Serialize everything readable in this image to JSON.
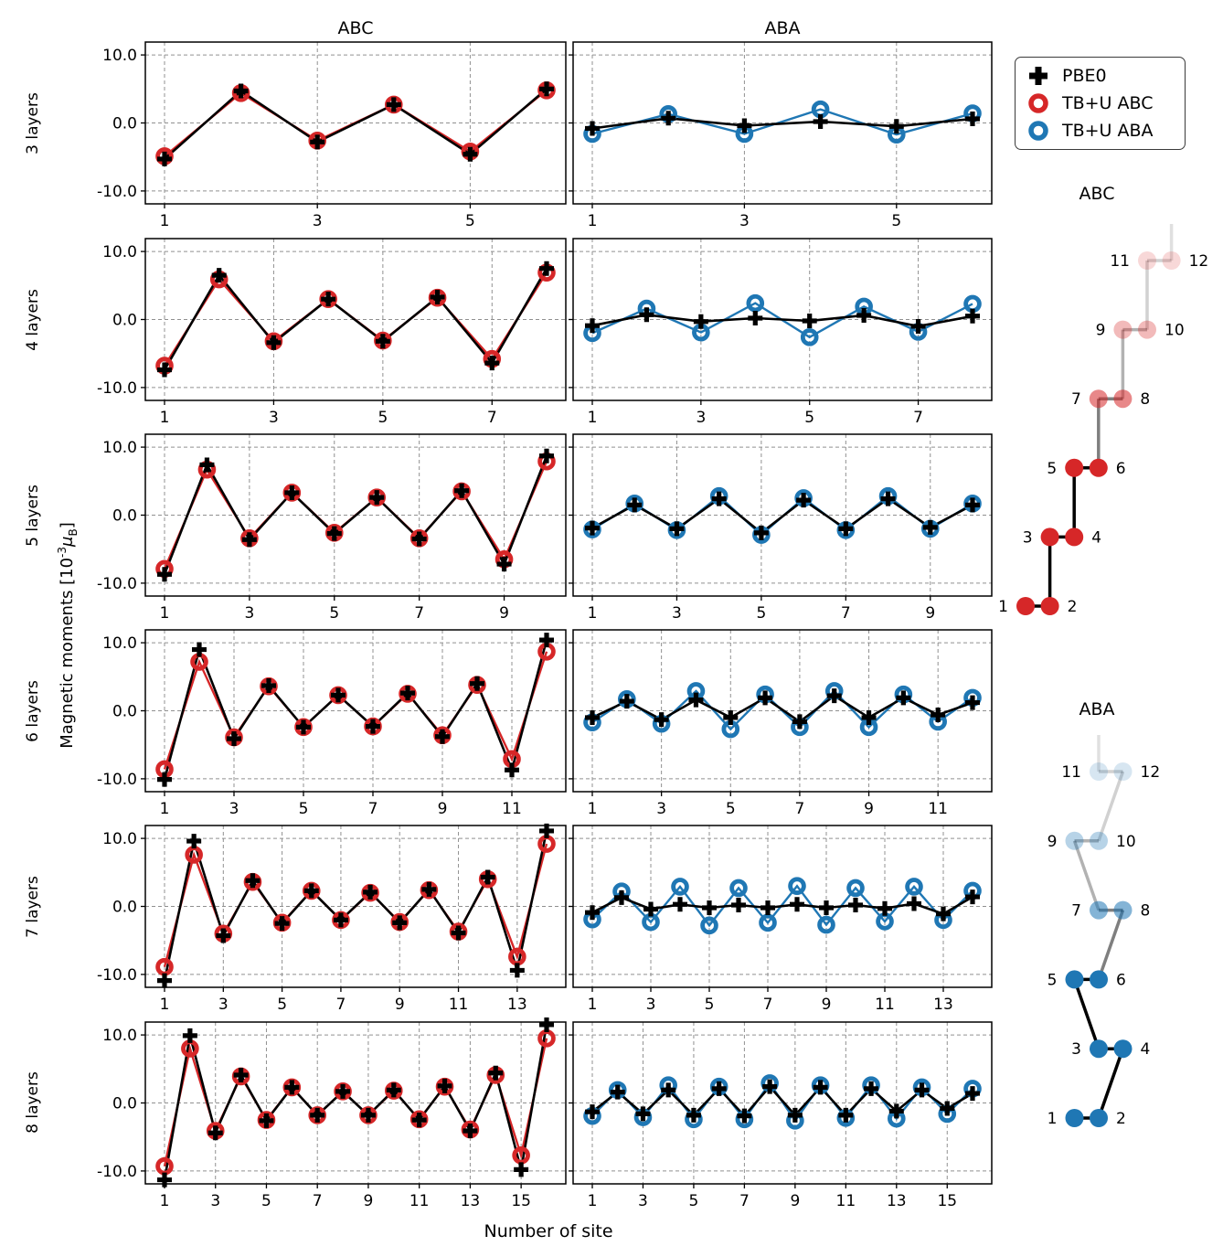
{
  "figure": {
    "col_titles": [
      "ABC",
      "ABA"
    ],
    "xlabel": "Number of site",
    "ylabel": {
      "pre": "Magnetic moments [10",
      "sup": "-3",
      "mu": "μ",
      "sub": "B",
      "post": "]"
    },
    "yticks": [
      "10.0",
      "0.0",
      "-10.0"
    ]
  },
  "legend": {
    "items": [
      {
        "label": "PBE0",
        "marker": "plus-marker-icon",
        "color": "#000000"
      },
      {
        "label": "TB+U ABC",
        "marker": "circle-marker-icon",
        "color": "#d62728"
      },
      {
        "label": "TB+U ABA",
        "marker": "circle-marker-icon",
        "color": "#1f77b4"
      }
    ]
  },
  "chart_data": {
    "type": "line",
    "xlabel": "Number of site",
    "ylabel": "Magnetic moments [10^-3 mu_B]",
    "ylim": [
      -12,
      12
    ],
    "ytick_values": [
      10.0,
      0.0,
      -10.0
    ],
    "rows": [
      {
        "layers": "3 layers",
        "sites": 6,
        "xticks": [
          1,
          3,
          5
        ],
        "abc": {
          "pbe0": [
            -5.3,
            4.7,
            -2.8,
            2.7,
            -4.6,
            5.0
          ],
          "tbu": [
            -4.9,
            4.4,
            -2.6,
            2.7,
            -4.2,
            4.8
          ]
        },
        "aba": {
          "pbe0": [
            -0.8,
            0.7,
            -0.4,
            0.2,
            -0.5,
            0.6
          ],
          "tbu": [
            -1.6,
            1.3,
            -1.6,
            2.0,
            -1.7,
            1.4
          ]
        }
      },
      {
        "layers": "4 layers",
        "sites": 8,
        "xticks": [
          1,
          3,
          5,
          7
        ],
        "abc": {
          "pbe0": [
            -7.4,
            6.5,
            -3.4,
            3.0,
            -3.2,
            3.3,
            -6.4,
            7.5
          ],
          "tbu": [
            -6.8,
            5.9,
            -3.2,
            3.0,
            -3.1,
            3.2,
            -5.8,
            6.9
          ]
        },
        "aba": {
          "pbe0": [
            -0.9,
            0.7,
            -0.3,
            0.2,
            -0.2,
            0.6,
            -1.0,
            0.5
          ],
          "tbu": [
            -2.0,
            1.6,
            -1.9,
            2.4,
            -2.6,
            1.9,
            -1.8,
            2.3
          ]
        }
      },
      {
        "layers": "5 layers",
        "sites": 10,
        "xticks": [
          1,
          3,
          5,
          7,
          9
        ],
        "abc": {
          "pbe0": [
            -8.7,
            7.4,
            -3.6,
            3.3,
            -2.7,
            2.6,
            -3.5,
            3.6,
            -7.2,
            8.7
          ],
          "tbu": [
            -7.9,
            6.7,
            -3.4,
            3.3,
            -2.6,
            2.6,
            -3.4,
            3.5,
            -6.5,
            7.9
          ]
        },
        "aba": {
          "pbe0": [
            -1.9,
            1.5,
            -2.0,
            2.4,
            -2.6,
            2.2,
            -2.0,
            2.4,
            -1.8,
            1.5
          ],
          "tbu": [
            -2.1,
            1.7,
            -2.2,
            2.8,
            -2.9,
            2.5,
            -2.2,
            2.8,
            -2.0,
            1.7
          ]
        }
      },
      {
        "layers": "6 layers",
        "sites": 12,
        "xticks": [
          1,
          3,
          5,
          7,
          9,
          11
        ],
        "abc": {
          "pbe0": [
            -10.1,
            9.0,
            -4.1,
            3.7,
            -2.4,
            2.3,
            -2.3,
            2.6,
            -3.8,
            4.0,
            -8.7,
            10.4
          ],
          "tbu": [
            -8.6,
            7.2,
            -3.9,
            3.6,
            -2.4,
            2.3,
            -2.3,
            2.5,
            -3.6,
            3.8,
            -7.1,
            8.7
          ]
        },
        "aba": {
          "pbe0": [
            -1.0,
            1.4,
            -1.3,
            1.6,
            -1.0,
            1.9,
            -1.6,
            2.2,
            -1.0,
            1.9,
            -0.6,
            1.2
          ],
          "tbu": [
            -1.7,
            1.7,
            -1.9,
            2.9,
            -2.7,
            2.4,
            -2.4,
            2.9,
            -2.4,
            2.4,
            -1.6,
            1.9
          ]
        }
      },
      {
        "layers": "7 layers",
        "sites": 14,
        "xticks": [
          1,
          3,
          5,
          7,
          9,
          11,
          13
        ],
        "abc": {
          "pbe0": [
            -10.9,
            9.6,
            -4.3,
            3.8,
            -2.5,
            2.3,
            -2.0,
            2.1,
            -2.4,
            2.5,
            -3.9,
            4.3,
            -9.4,
            11.1
          ],
          "tbu": [
            -8.9,
            7.6,
            -4.0,
            3.6,
            -2.4,
            2.3,
            -2.0,
            2.0,
            -2.3,
            2.4,
            -3.7,
            4.0,
            -7.4,
            9.2
          ]
        },
        "aba": {
          "pbe0": [
            -0.9,
            1.3,
            -0.4,
            0.3,
            -0.2,
            0.2,
            -0.2,
            0.3,
            -0.2,
            0.2,
            -0.3,
            0.4,
            -1.1,
            1.4
          ],
          "tbu": [
            -1.9,
            2.2,
            -2.3,
            2.9,
            -2.8,
            2.7,
            -2.4,
            3.0,
            -2.7,
            2.7,
            -2.2,
            2.9,
            -2.0,
            2.3
          ]
        }
      },
      {
        "layers": "8 layers",
        "sites": 16,
        "xticks": [
          1,
          3,
          5,
          7,
          9,
          11,
          13,
          15
        ],
        "abc": {
          "pbe0": [
            -11.3,
            9.9,
            -4.4,
            4.1,
            -2.6,
            2.3,
            -1.8,
            1.7,
            -1.8,
            1.9,
            -2.5,
            2.5,
            -4.1,
            4.4,
            -9.8,
            11.5
          ],
          "tbu": [
            -9.3,
            8.0,
            -4.1,
            3.9,
            -2.5,
            2.3,
            -1.8,
            1.7,
            -1.8,
            1.8,
            -2.4,
            2.4,
            -3.9,
            4.1,
            -7.7,
            9.5
          ]
        },
        "aba": {
          "pbe0": [
            -1.3,
            1.6,
            -1.6,
            1.9,
            -1.8,
            2.1,
            -1.9,
            2.4,
            -1.8,
            2.3,
            -1.8,
            2.1,
            -1.2,
            1.9,
            -0.8,
            1.4
          ],
          "tbu": [
            -1.9,
            1.9,
            -2.1,
            2.6,
            -2.4,
            2.4,
            -2.4,
            2.9,
            -2.6,
            2.6,
            -2.2,
            2.6,
            -2.3,
            2.3,
            -1.6,
            2.1
          ]
        }
      }
    ]
  },
  "diagrams": {
    "abc": {
      "title": "ABC",
      "color": "#d62728",
      "labels": [
        "1",
        "2",
        "3",
        "4",
        "5",
        "6",
        "7",
        "8",
        "9",
        "10",
        "11",
        "12"
      ],
      "pair_alphas": [
        1,
        1,
        1,
        0.55,
        0.32,
        0.18
      ],
      "bond_alphas": [
        1,
        1,
        1,
        0.5,
        0.3,
        0.18
      ],
      "link_alphas": [
        1,
        1,
        0.5,
        0.3,
        0.18
      ],
      "stub_alpha": 0.12
    },
    "aba": {
      "title": "ABA",
      "color": "#1f77b4",
      "labels": [
        "1",
        "2",
        "3",
        "4",
        "5",
        "6",
        "7",
        "8",
        "9",
        "10",
        "11",
        "12"
      ],
      "pair_alphas": [
        1,
        1,
        1,
        0.55,
        0.32,
        0.18
      ],
      "bond_alphas": [
        1,
        1,
        1,
        0.5,
        0.3,
        0.18
      ],
      "link_alphas": [
        1,
        1,
        0.5,
        0.3,
        0.18
      ],
      "stub_alpha": 0.12
    }
  }
}
